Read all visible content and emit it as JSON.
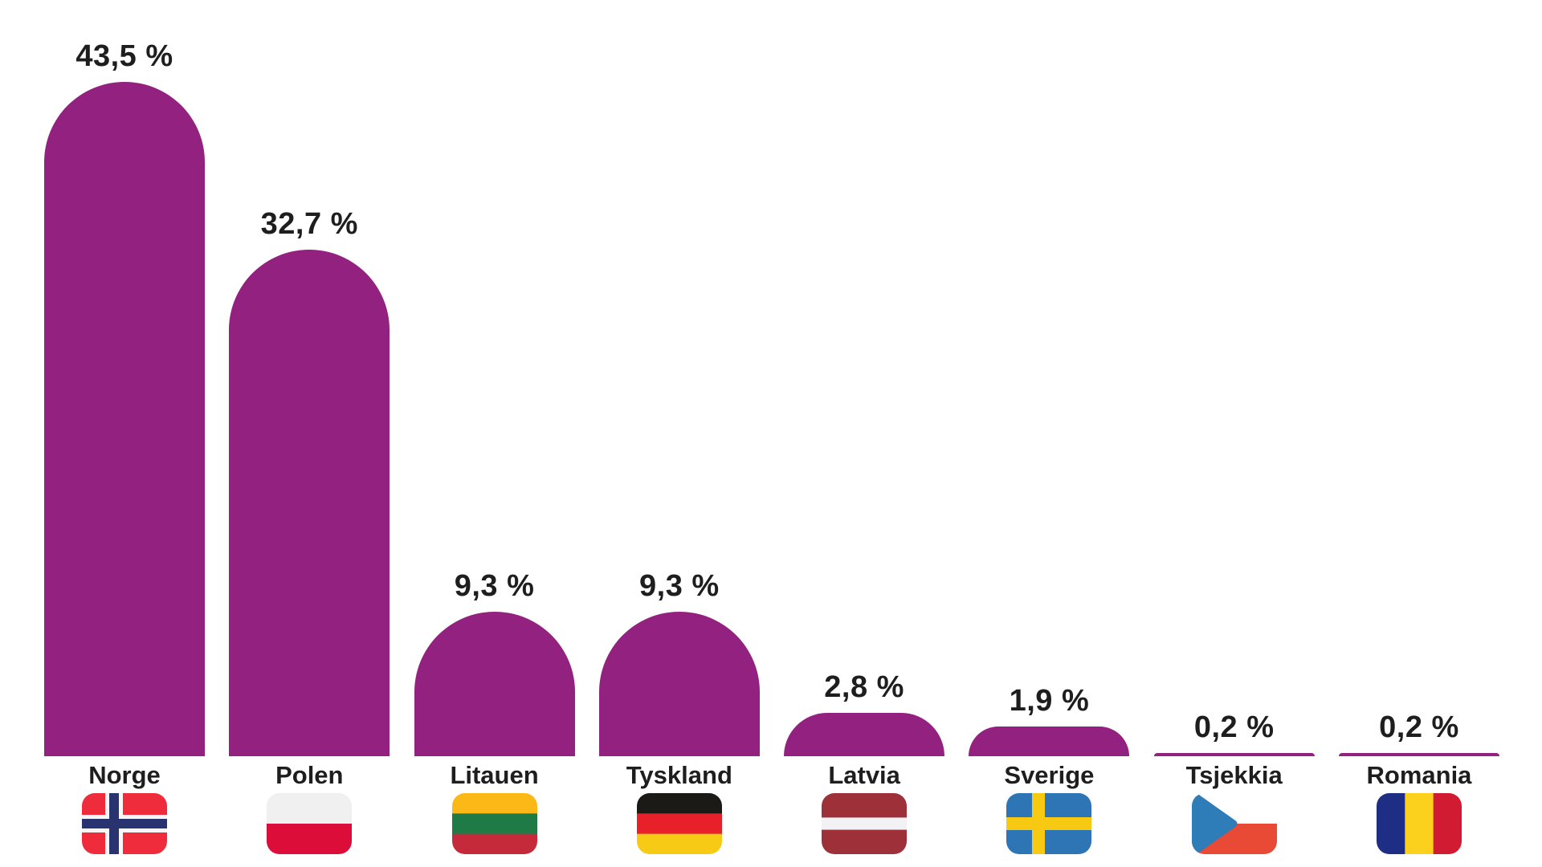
{
  "chart_data": {
    "type": "bar",
    "orientation": "vertical",
    "title": "",
    "xlabel": "",
    "ylabel": "",
    "categories": [
      "Norge",
      "Polen",
      "Litauen",
      "Tyskland",
      "Latvia",
      "Sverige",
      "Tsjekkia",
      "Romania"
    ],
    "values": [
      43.5,
      32.7,
      9.3,
      9.3,
      2.8,
      1.9,
      0.2,
      0.2
    ],
    "value_labels": [
      "43,5 %",
      "32,7 %",
      "9,3 %",
      "9,3 %",
      "2,8 %",
      "1,9 %",
      "0,2 %",
      "0,2 %"
    ],
    "unit": "%",
    "decimal_separator": ",",
    "ylim": [
      0,
      45
    ],
    "grid": false,
    "legend": "none",
    "axes_visible": false,
    "bar_color": "#92217F",
    "label_color": "#1E1E1E",
    "background": "#FFFFFF",
    "bar_top_style": "rounded-cap"
  },
  "flags": [
    {
      "name": "flag-norway",
      "type": "nordic-cross",
      "bg": "#EE2C3C",
      "cross": "#29336F",
      "fimbriation": "#F7F7F7"
    },
    {
      "name": "flag-poland",
      "type": "h-stripes",
      "stripes": [
        {
          "color": "#F1F0F1",
          "weight": 1
        },
        {
          "color": "#DC0D39",
          "weight": 1
        }
      ]
    },
    {
      "name": "flag-lithuania",
      "type": "h-stripes",
      "stripes": [
        {
          "color": "#FCB816",
          "weight": 1
        },
        {
          "color": "#1E7B46",
          "weight": 1
        },
        {
          "color": "#C52A3B",
          "weight": 1
        }
      ]
    },
    {
      "name": "flag-germany",
      "type": "h-stripes",
      "stripes": [
        {
          "color": "#1C1A17",
          "weight": 1
        },
        {
          "color": "#E8202A",
          "weight": 1
        },
        {
          "color": "#F7CB15",
          "weight": 1
        }
      ]
    },
    {
      "name": "flag-latvia",
      "type": "h-stripes",
      "stripes": [
        {
          "color": "#9D3039",
          "weight": 2
        },
        {
          "color": "#F2F2F4",
          "weight": 1
        },
        {
          "color": "#9D3039",
          "weight": 2
        }
      ]
    },
    {
      "name": "flag-sweden",
      "type": "nordic-cross",
      "bg": "#2E75B6",
      "cross": "#F8C913",
      "fimbriation": null
    },
    {
      "name": "flag-czechia",
      "type": "czech",
      "top": "#FFFFFF",
      "bottom": "#E84A35",
      "triangle": "#2E7CB8"
    },
    {
      "name": "flag-romania",
      "type": "v-stripes",
      "stripes": [
        {
          "color": "#1F2E85",
          "weight": 1
        },
        {
          "color": "#FCD11E",
          "weight": 1
        },
        {
          "color": "#D01B32",
          "weight": 1
        }
      ]
    }
  ]
}
